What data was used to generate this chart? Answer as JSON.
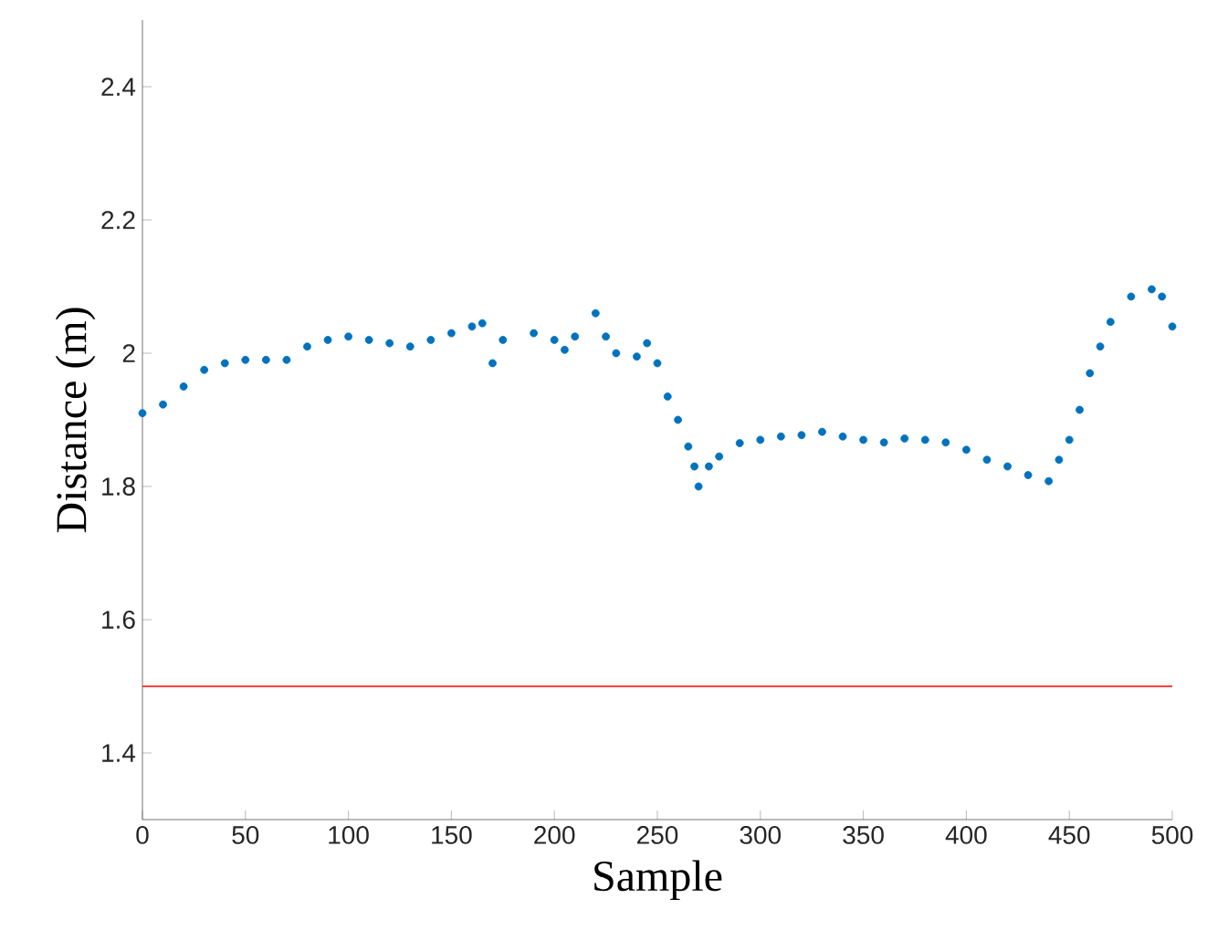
{
  "chart_data": {
    "type": "scatter",
    "xlabel": "Sample",
    "ylabel": "Distance (m)",
    "xlim": [
      0,
      500
    ],
    "ylim": [
      1.3,
      2.5
    ],
    "xticks": [
      0,
      50,
      100,
      150,
      200,
      250,
      300,
      350,
      400,
      450,
      500
    ],
    "yticks": [
      1.4,
      1.6,
      1.8,
      2,
      2.2,
      2.4
    ],
    "series": [
      {
        "color": "#0072bd",
        "x": [
          0,
          10,
          20,
          30,
          40,
          50,
          60,
          70,
          80,
          90,
          100,
          110,
          120,
          130,
          140,
          150,
          160,
          165,
          170,
          175,
          190,
          200,
          205,
          210,
          220,
          225,
          230,
          240,
          245,
          250,
          255,
          260,
          265,
          268,
          270,
          275,
          280,
          290,
          300,
          310,
          320,
          330,
          340,
          350,
          360,
          370,
          380,
          390,
          400,
          410,
          420,
          430,
          440,
          445,
          450,
          455,
          460,
          465,
          470,
          480,
          490,
          495,
          500
        ],
        "values": [
          1.91,
          1.923,
          1.95,
          1.975,
          1.985,
          1.99,
          1.99,
          1.99,
          2.01,
          2.02,
          2.025,
          2.02,
          2.015,
          2.01,
          2.02,
          2.03,
          2.04,
          2.045,
          1.985,
          2.02,
          2.03,
          2.02,
          2.005,
          2.025,
          2.06,
          2.025,
          2.0,
          1.995,
          2.015,
          1.985,
          1.935,
          1.9,
          1.86,
          1.83,
          1.8,
          1.83,
          1.845,
          1.865,
          1.87,
          1.875,
          1.877,
          1.882,
          1.875,
          1.87,
          1.866,
          1.872,
          1.87,
          1.866,
          1.855,
          1.84,
          1.83,
          1.817,
          1.808,
          1.84,
          1.87,
          1.915,
          1.97,
          2.01,
          2.047,
          2.085,
          2.096,
          2.085,
          2.04
        ]
      }
    ],
    "ref_lines": [
      {
        "axis": "y",
        "value": 1.5,
        "color": "#ff0000"
      }
    ]
  }
}
